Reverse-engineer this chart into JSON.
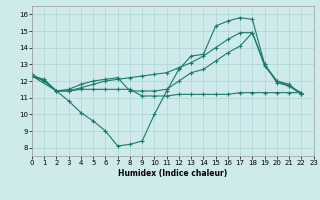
{
  "background_color": "#ceeaea",
  "grid_color": "#aed4d4",
  "line_color": "#1a7a6a",
  "xlabel": "Humidex (Indice chaleur)",
  "xlim": [
    0,
    23
  ],
  "ylim": [
    7.5,
    16.5
  ],
  "yticks": [
    8,
    9,
    10,
    11,
    12,
    13,
    14,
    15,
    16
  ],
  "xticks": [
    0,
    1,
    2,
    3,
    4,
    5,
    6,
    7,
    8,
    9,
    10,
    11,
    12,
    13,
    14,
    15,
    16,
    17,
    18,
    19,
    20,
    21,
    22,
    23
  ],
  "curve1_x": [
    0,
    1,
    2,
    3,
    4,
    5,
    6,
    7,
    8,
    9,
    10,
    11,
    12,
    13,
    14,
    15,
    16,
    17,
    18,
    19,
    20,
    21,
    22
  ],
  "curve1_y": [
    12.4,
    12.0,
    11.4,
    10.8,
    10.1,
    9.6,
    9.0,
    8.1,
    8.2,
    8.4,
    10.0,
    11.4,
    12.7,
    13.5,
    13.6,
    15.3,
    15.6,
    15.8,
    15.7,
    13.0,
    12.0,
    11.8,
    11.2
  ],
  "curve2_x": [
    0,
    1,
    2,
    3,
    4,
    5,
    6,
    7,
    8,
    9,
    10,
    11,
    12,
    13,
    14,
    15,
    16,
    17,
    18,
    19,
    20,
    21,
    22
  ],
  "curve2_y": [
    12.3,
    12.1,
    11.4,
    11.5,
    11.8,
    12.0,
    12.1,
    12.2,
    11.4,
    11.4,
    11.4,
    11.5,
    12.0,
    12.5,
    12.7,
    13.2,
    13.7,
    14.1,
    14.9,
    13.0,
    11.9,
    11.7,
    11.2
  ],
  "curve3_x": [
    0,
    1,
    2,
    3,
    4,
    5,
    6,
    7,
    8,
    9,
    10,
    11,
    12,
    13,
    14,
    15,
    16,
    17,
    18,
    19,
    20,
    21,
    22
  ],
  "curve3_y": [
    12.3,
    12.0,
    11.4,
    11.4,
    11.6,
    11.8,
    12.0,
    12.1,
    12.2,
    12.3,
    12.4,
    12.5,
    12.8,
    13.1,
    13.5,
    14.0,
    14.5,
    14.9,
    14.9,
    12.9,
    12.0,
    11.7,
    11.3
  ],
  "curve4_x": [
    0,
    2,
    3,
    4,
    5,
    6,
    7,
    8,
    9,
    10,
    11,
    12,
    13,
    14,
    15,
    16,
    17,
    18,
    19,
    20,
    21,
    22
  ],
  "curve4_y": [
    12.3,
    11.4,
    11.4,
    11.5,
    11.5,
    11.5,
    11.5,
    11.5,
    11.1,
    11.1,
    11.1,
    11.2,
    11.2,
    11.2,
    11.2,
    11.2,
    11.3,
    11.3,
    11.3,
    11.3,
    11.3,
    11.3
  ]
}
